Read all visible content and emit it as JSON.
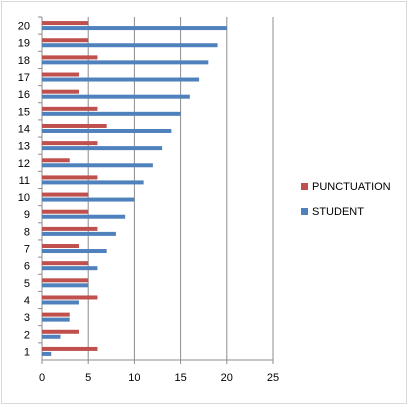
{
  "chart_data": {
    "type": "bar",
    "orientation": "horizontal",
    "title": "",
    "xlabel": "",
    "ylabel": "",
    "categories": [
      "1",
      "2",
      "3",
      "4",
      "5",
      "6",
      "7",
      "8",
      "9",
      "10",
      "11",
      "12",
      "13",
      "14",
      "15",
      "16",
      "17",
      "18",
      "19",
      "20"
    ],
    "xlim": [
      0,
      25
    ],
    "x_ticks": [
      "0",
      "5",
      "10",
      "15",
      "20",
      "25"
    ],
    "grid": "vertical",
    "legend_position": "right",
    "series": [
      {
        "name": "PUNCTUATION",
        "color": "#c0504d",
        "values": [
          6,
          4,
          3,
          6,
          5,
          5,
          4,
          6,
          5,
          5,
          6,
          3,
          6,
          7,
          6,
          4,
          4,
          6,
          5,
          5
        ]
      },
      {
        "name": "STUDENT",
        "color": "#4f81bd",
        "values": [
          1,
          2,
          3,
          4,
          5,
          6,
          7,
          8,
          9,
          10,
          11,
          12,
          13,
          14,
          15,
          16,
          17,
          18,
          19,
          20
        ]
      }
    ]
  }
}
